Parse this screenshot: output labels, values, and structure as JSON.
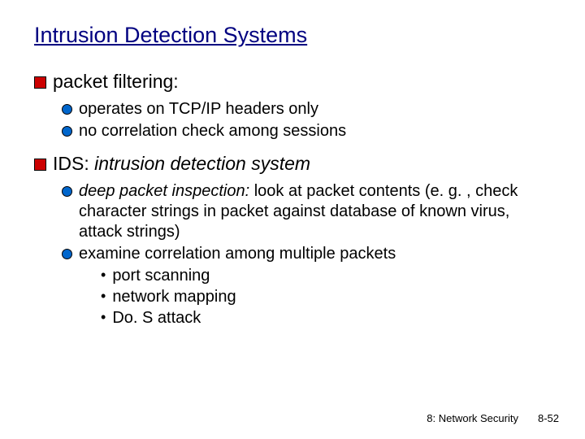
{
  "title": "Intrusion Detection Systems",
  "items": [
    {
      "label": "packet filtering:",
      "sub": [
        {
          "text": "operates on TCP/IP headers only"
        },
        {
          "text": "no correlation check among sessions"
        }
      ]
    }
  ],
  "ids_label_prefix": "IDS: ",
  "ids_label_italic": "intrusion detection system",
  "ids_sub1_em": "deep packet inspection:",
  "ids_sub1_rest": " look at packet contents (e. g. , check character strings in packet against database of known virus, attack strings)",
  "ids_sub2": "examine correlation among multiple packets",
  "ids_sub2_items": [
    "port scanning",
    "network mapping",
    "Do. S attack"
  ],
  "footer_left": "8: Network Security",
  "footer_right": "8-52",
  "colors": {
    "title": "#000080",
    "square_bullet": "#cc0000",
    "circle_bullet": "#0066cc",
    "text": "#000000",
    "background": "#ffffff"
  },
  "fonts": {
    "family": "Comic Sans MS",
    "title_size": 27,
    "level1_size": 23,
    "level2_size": 20,
    "level3_size": 20,
    "footer_size": 13
  }
}
